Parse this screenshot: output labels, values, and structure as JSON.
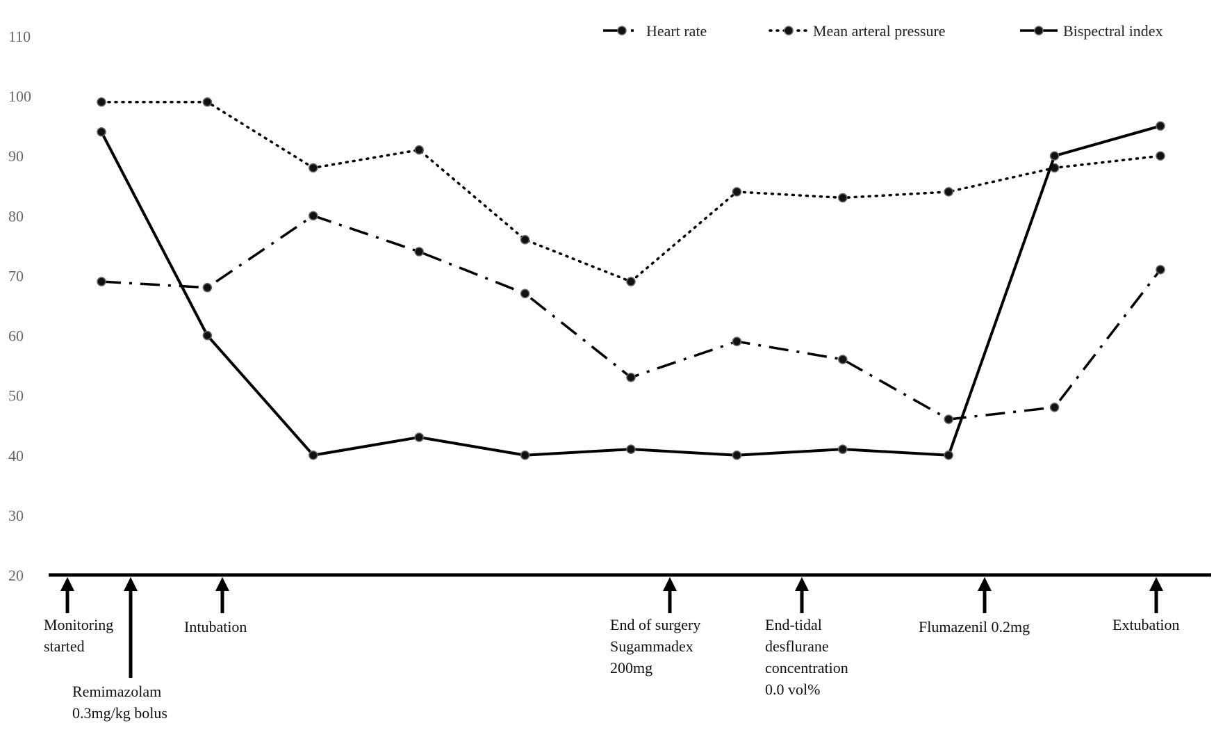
{
  "chart_data": {
    "type": "line",
    "title": "",
    "xlabel": "",
    "ylabel": "",
    "ylim": [
      20,
      110
    ],
    "yticks": [
      20,
      30,
      40,
      50,
      60,
      70,
      80,
      90,
      100,
      110
    ],
    "grid": false,
    "legend_position": "top-right",
    "series": [
      {
        "name": "Heart rate",
        "style": "dash-dot",
        "color": "#000000",
        "values": [
          69,
          68,
          80,
          74,
          67,
          53,
          59,
          56,
          46,
          48,
          71
        ]
      },
      {
        "name": "Mean arteral pressure",
        "style": "dotted",
        "color": "#000000",
        "values": [
          99,
          99,
          88,
          91,
          76,
          69,
          84,
          83,
          84,
          88,
          90
        ]
      },
      {
        "name": "Bispectral index",
        "style": "solid",
        "color": "#000000",
        "values": [
          94,
          60,
          40,
          43,
          40,
          41,
          40,
          41,
          40,
          90,
          95
        ]
      }
    ],
    "events": [
      {
        "lines": [
          "Monitoring",
          "started"
        ]
      },
      {
        "lines": [
          "Remimazolam",
          "0.3mg/kg bolus"
        ]
      },
      {
        "lines": [
          "Intubation"
        ]
      },
      {
        "lines": [
          "End of surgery",
          "Sugammadex",
          "200mg"
        ]
      },
      {
        "lines": [
          "End-tidal",
          "desflurane",
          "concentration",
          "0.0 vol%"
        ]
      },
      {
        "lines": [
          "Flumazenil 0.2mg"
        ]
      },
      {
        "lines": [
          "Extubation"
        ]
      }
    ]
  }
}
